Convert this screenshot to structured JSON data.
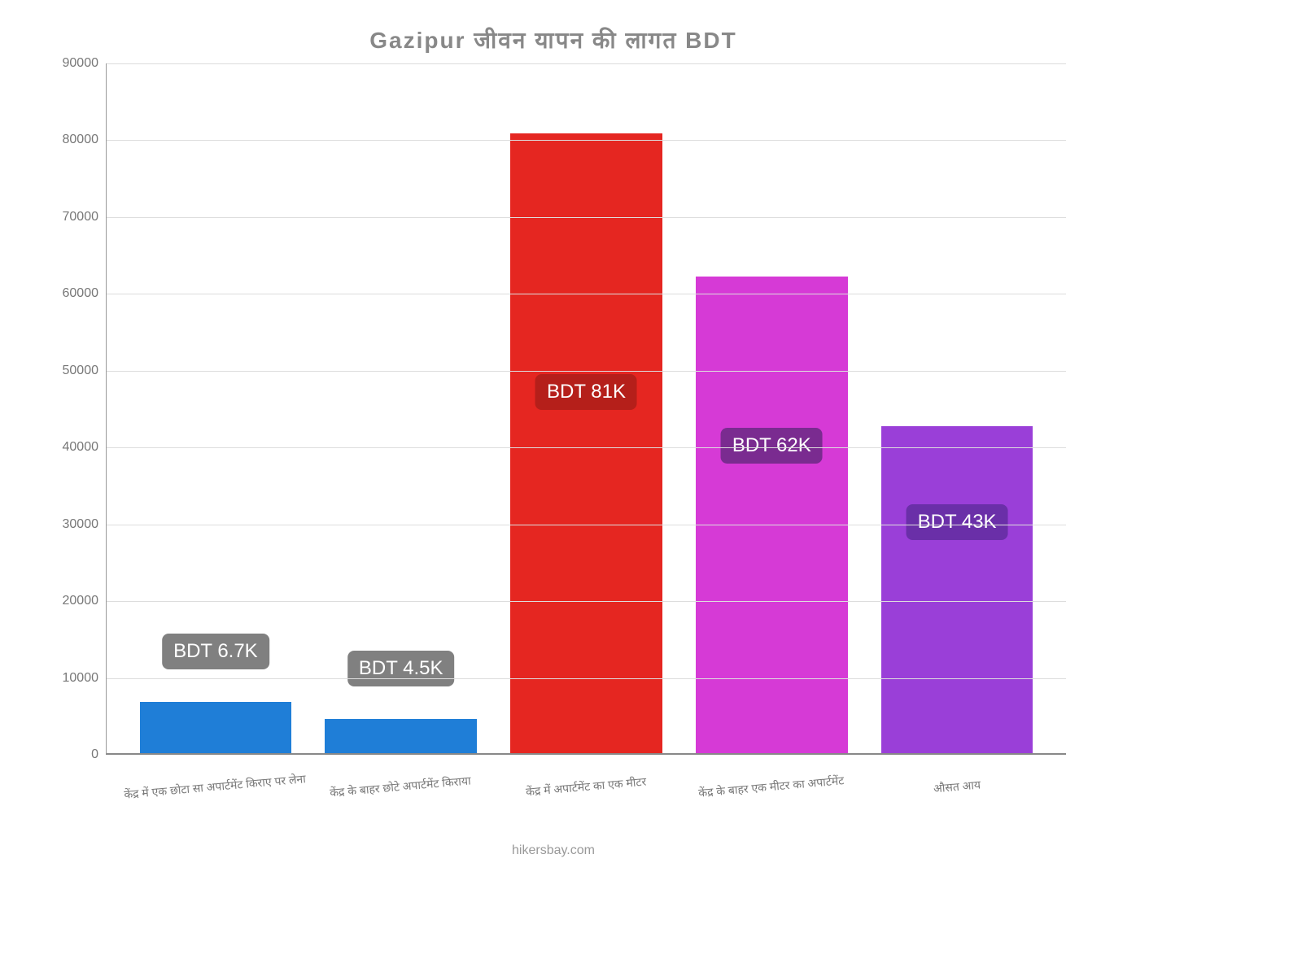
{
  "chart": {
    "type": "bar",
    "title": "Gazipur जीवन   यापन   की   लागत   BDT",
    "title_fontsize": 28,
    "title_color": "#888888",
    "ylim": [
      0,
      90000
    ],
    "ytick_step": 10000,
    "yticks": [
      0,
      10000,
      20000,
      30000,
      40000,
      50000,
      60000,
      70000,
      80000,
      90000
    ],
    "grid_color": "#dddddd",
    "axis_color": "#888888",
    "background_color": "#ffffff",
    "xlabel_fontsize": 14,
    "ylabel_fontsize": 16,
    "badge_fontsize": 24,
    "bar_width": 0.82,
    "categories": [
      "केंद्र में एक छोटा सा अपार्टमेंट किराए पर लेना",
      "केंद्र के बाहर छोटे अपार्टमेंट किराया",
      "केंद्र में अपार्टमेंट का एक मीटर",
      "केंद्र के बाहर एक मीटर का अपार्टमेंट",
      "औसत आय"
    ],
    "values": [
      6700,
      4500,
      80700,
      62000,
      42600
    ],
    "bar_colors": [
      "#1f7ed7",
      "#1f7ed7",
      "#e52621",
      "#d63ad6",
      "#9a3fd8"
    ],
    "badge_labels": [
      "BDT 6.7K",
      "BDT 4.5K",
      "BDT 81K",
      "BDT 62K",
      "BDT 43K"
    ],
    "badge_bg_colors": [
      "#808080",
      "#808080",
      "#b51f1a",
      "#7a2b90",
      "#6a2fa8"
    ],
    "badge_offsets": [
      40,
      40,
      -340,
      -230,
      -140
    ]
  },
  "footer": "hikersbay.com"
}
